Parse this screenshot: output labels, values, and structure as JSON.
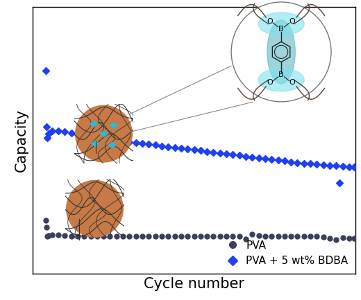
{
  "chart_data": {
    "type": "scatter",
    "x_label": "Cycle number",
    "y_label": "Capacity",
    "x": [
      1,
      2,
      3,
      5,
      10,
      20,
      30,
      40,
      50,
      60,
      70,
      80,
      90,
      100,
      110,
      120,
      130,
      140,
      150,
      160,
      170,
      180,
      190,
      200,
      210,
      220,
      230,
      240,
      250,
      260,
      270,
      280,
      290,
      300,
      310,
      320,
      330,
      340,
      350,
      360,
      370,
      380,
      390,
      400,
      410,
      420,
      430,
      440,
      450,
      455,
      460,
      470,
      478
    ],
    "series": [
      {
        "name": "PVA",
        "color": "#3b3e5e",
        "marker": "circle",
        "values": [
          20,
          17.5,
          14,
          14.3,
          14.6,
          14.4,
          14.2,
          14.1,
          14.0,
          14.0,
          14.1,
          14.0,
          13.9,
          14.0,
          14.1,
          14.0,
          14.0,
          13.9,
          14.0,
          14.1,
          14.0,
          13.9,
          13.9,
          14.0,
          14.0,
          13.9,
          14.0,
          14.1,
          14.0,
          13.9,
          13.9,
          14.0,
          14.0,
          13.9,
          13.0,
          14.8,
          14.3,
          14.1,
          14.0,
          13.9,
          14.0,
          14.0,
          13.9,
          13.9,
          14.0,
          13.9,
          13.8,
          13.2,
          12.8,
          null,
          13.5,
          13.3,
          13.2
        ]
      },
      {
        "name": "PVA + 5 wt% BDBA",
        "color": "#1f3ff0",
        "marker": "diamond",
        "values": [
          76,
          55,
          51,
          52.5,
          53.4,
          53.6,
          53.2,
          52.7,
          52.2,
          51.8,
          51.4,
          51.0,
          50.6,
          50.3,
          50.0,
          49.7,
          49.4,
          49.1,
          48.8,
          48.5,
          48.2,
          47.9,
          47.6,
          47.3,
          47.0,
          46.7,
          46.4,
          46.1,
          45.8,
          45.5,
          45.2,
          44.9,
          44.6,
          44.3,
          44.0,
          43.7,
          43.4,
          43.1,
          42.8,
          42.5,
          42.2,
          41.9,
          41.6,
          41.4,
          41.2,
          41.0,
          40.8,
          40.6,
          40.4,
          34.0,
          40.2,
          40.0,
          39.9
        ]
      }
    ],
    "xlim": [
      -20,
      480
    ],
    "ylim": [
      0,
      100
    ],
    "xticks": [],
    "yticks": [],
    "tick_labels": false,
    "legend": "lower right",
    "annotations": [
      "O",
      "O",
      "B",
      "B",
      "O",
      "O"
    ]
  }
}
